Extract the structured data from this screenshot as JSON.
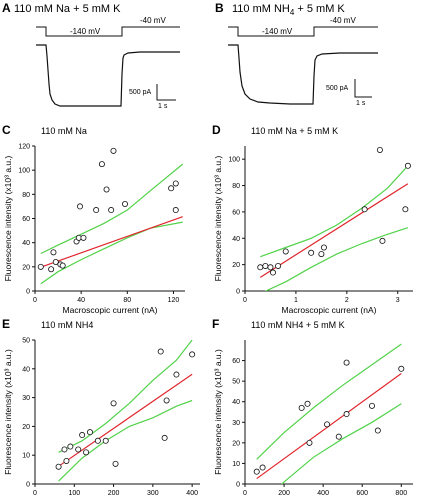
{
  "colors": {
    "ink": "#111111",
    "regression": "#e0262c",
    "confidence": "#52d24a",
    "marker_fill": "#ffffff"
  },
  "panels": [
    {
      "letter": "A",
      "title_main": "110 mM Na + 5 mM K",
      "title_sub": ""
    },
    {
      "letter": "B",
      "title_main": "110 mM NH",
      "title_sub": "4",
      "title_tail": " + 5 mM K"
    }
  ],
  "traces": [
    {
      "hold_label": "-40 mV",
      "step_label": "-140 mV",
      "current_scale": "500 pA",
      "time_scale": "1 s"
    },
    {
      "hold_label": "-40 mV",
      "step_label": "-140 mV",
      "current_scale": "500 pA",
      "time_scale": "1 s"
    }
  ],
  "chart_data": [
    {
      "letter": "C",
      "type": "scatter",
      "title": "110 mM Na",
      "xlabel": "Macroscopic current (nA)",
      "ylabel": "Fluorescence intensity (x10³ a.u.)",
      "xlim": [
        0,
        130
      ],
      "ylim": [
        0,
        120
      ],
      "xticks": [
        0,
        40,
        80,
        120
      ],
      "yticks": [
        0,
        20,
        40,
        60,
        80,
        100,
        120
      ],
      "x": [
        5,
        14,
        16,
        18,
        22,
        24,
        36,
        38,
        39,
        42,
        53,
        58,
        62,
        66,
        68,
        78,
        118,
        122,
        122
      ],
      "y": [
        20,
        18,
        32,
        24,
        22,
        21,
        41,
        44,
        70,
        44,
        67,
        105,
        84,
        67,
        116,
        72,
        85,
        89,
        67
      ],
      "fit": {
        "slope": 0.34,
        "intercept": 18
      },
      "ci": [
        {
          "x": [
            5,
            20,
            40,
            60,
            80,
            100,
            128
          ],
          "y": [
            31,
            38,
            47,
            56,
            67,
            83,
            105
          ]
        },
        {
          "x": [
            5,
            20,
            40,
            60,
            80,
            100,
            128
          ],
          "y": [
            6,
            16,
            26,
            35,
            44,
            52,
            57
          ]
        }
      ]
    },
    {
      "letter": "D",
      "type": "scatter",
      "title": "110 mM Na + 5 mM K",
      "xlabel": "Macroscopic current (nA)",
      "ylabel": "Fluorescence intensity (x10³ a.u.)",
      "xlim": [
        0,
        3.3
      ],
      "ylim": [
        0,
        110
      ],
      "xticks": [
        0,
        1,
        2,
        3
      ],
      "yticks": [
        0,
        20,
        40,
        60,
        80,
        100
      ],
      "x": [
        0.3,
        0.4,
        0.5,
        0.55,
        0.65,
        0.8,
        1.3,
        1.5,
        1.55,
        2.35,
        2.65,
        2.7,
        3.15,
        3.2
      ],
      "y": [
        18,
        19,
        18,
        14,
        19,
        30,
        29,
        28,
        33,
        62,
        107,
        38,
        62,
        95
      ],
      "fit": {
        "slope": 24.5,
        "intercept": 3
      },
      "ci": [
        {
          "x": [
            0.3,
            0.8,
            1.3,
            1.8,
            2.3,
            2.8,
            3.2
          ],
          "y": [
            26,
            33,
            40,
            50,
            63,
            78,
            95
          ]
        },
        {
          "x": [
            0.3,
            0.8,
            1.3,
            1.8,
            2.3,
            2.8,
            3.2
          ],
          "y": [
            -2,
            7,
            18,
            28,
            36,
            43,
            48
          ]
        }
      ]
    },
    {
      "letter": "E",
      "type": "scatter",
      "title": "110 mM NH4",
      "xlabel": "Macroscopic current (pA)",
      "ylabel": "Fluorescence intensity (x10³ a.u.)",
      "xlim": [
        0,
        420
      ],
      "ylim": [
        0,
        50
      ],
      "xticks": [
        0,
        100,
        200,
        300,
        400
      ],
      "yticks": [
        0,
        10,
        20,
        30,
        40,
        50
      ],
      "x": [
        60,
        75,
        80,
        90,
        110,
        120,
        130,
        140,
        160,
        180,
        200,
        205,
        320,
        330,
        335,
        360,
        400
      ],
      "y": [
        6,
        12,
        8,
        13,
        12,
        17,
        11,
        18,
        15,
        15,
        28,
        7,
        46,
        16,
        29,
        38,
        45
      ],
      "fit": {
        "slope": 0.094,
        "intercept": 0.5
      },
      "ci": [
        {
          "x": [
            60,
            120,
            180,
            240,
            300,
            360,
            400
          ],
          "y": [
            11,
            15,
            21,
            28,
            36,
            43,
            50
          ]
        },
        {
          "x": [
            60,
            120,
            180,
            240,
            300,
            360,
            400
          ],
          "y": [
            1,
            9,
            15,
            20,
            23,
            27,
            29
          ]
        }
      ]
    },
    {
      "letter": "F",
      "type": "scatter",
      "title": "110 mM NH4 + 5 mM K",
      "xlabel": "Macroscopic current (pA)",
      "ylabel": "Fluorescence intensity (x10³ a.u.)",
      "xlim": [
        0,
        860
      ],
      "ylim": [
        0,
        70
      ],
      "xticks": [
        0,
        200,
        400,
        600,
        800
      ],
      "yticks": [
        0,
        10,
        20,
        30,
        40,
        50,
        60
      ],
      "x": [
        60,
        90,
        290,
        320,
        330,
        420,
        480,
        520,
        520,
        650,
        680,
        800
      ],
      "y": [
        6,
        8,
        37,
        39,
        20,
        29,
        23,
        59,
        34,
        38,
        26,
        56
      ],
      "fit": {
        "slope": 0.069,
        "intercept": -1.5
      },
      "ci": [
        {
          "x": [
            60,
            200,
            350,
            500,
            650,
            800
          ],
          "y": [
            12,
            25,
            37,
            48,
            58,
            68
          ]
        },
        {
          "x": [
            60,
            200,
            350,
            500,
            650,
            800
          ],
          "y": [
            -12,
            1,
            13,
            22,
            30,
            39
          ]
        }
      ]
    }
  ]
}
